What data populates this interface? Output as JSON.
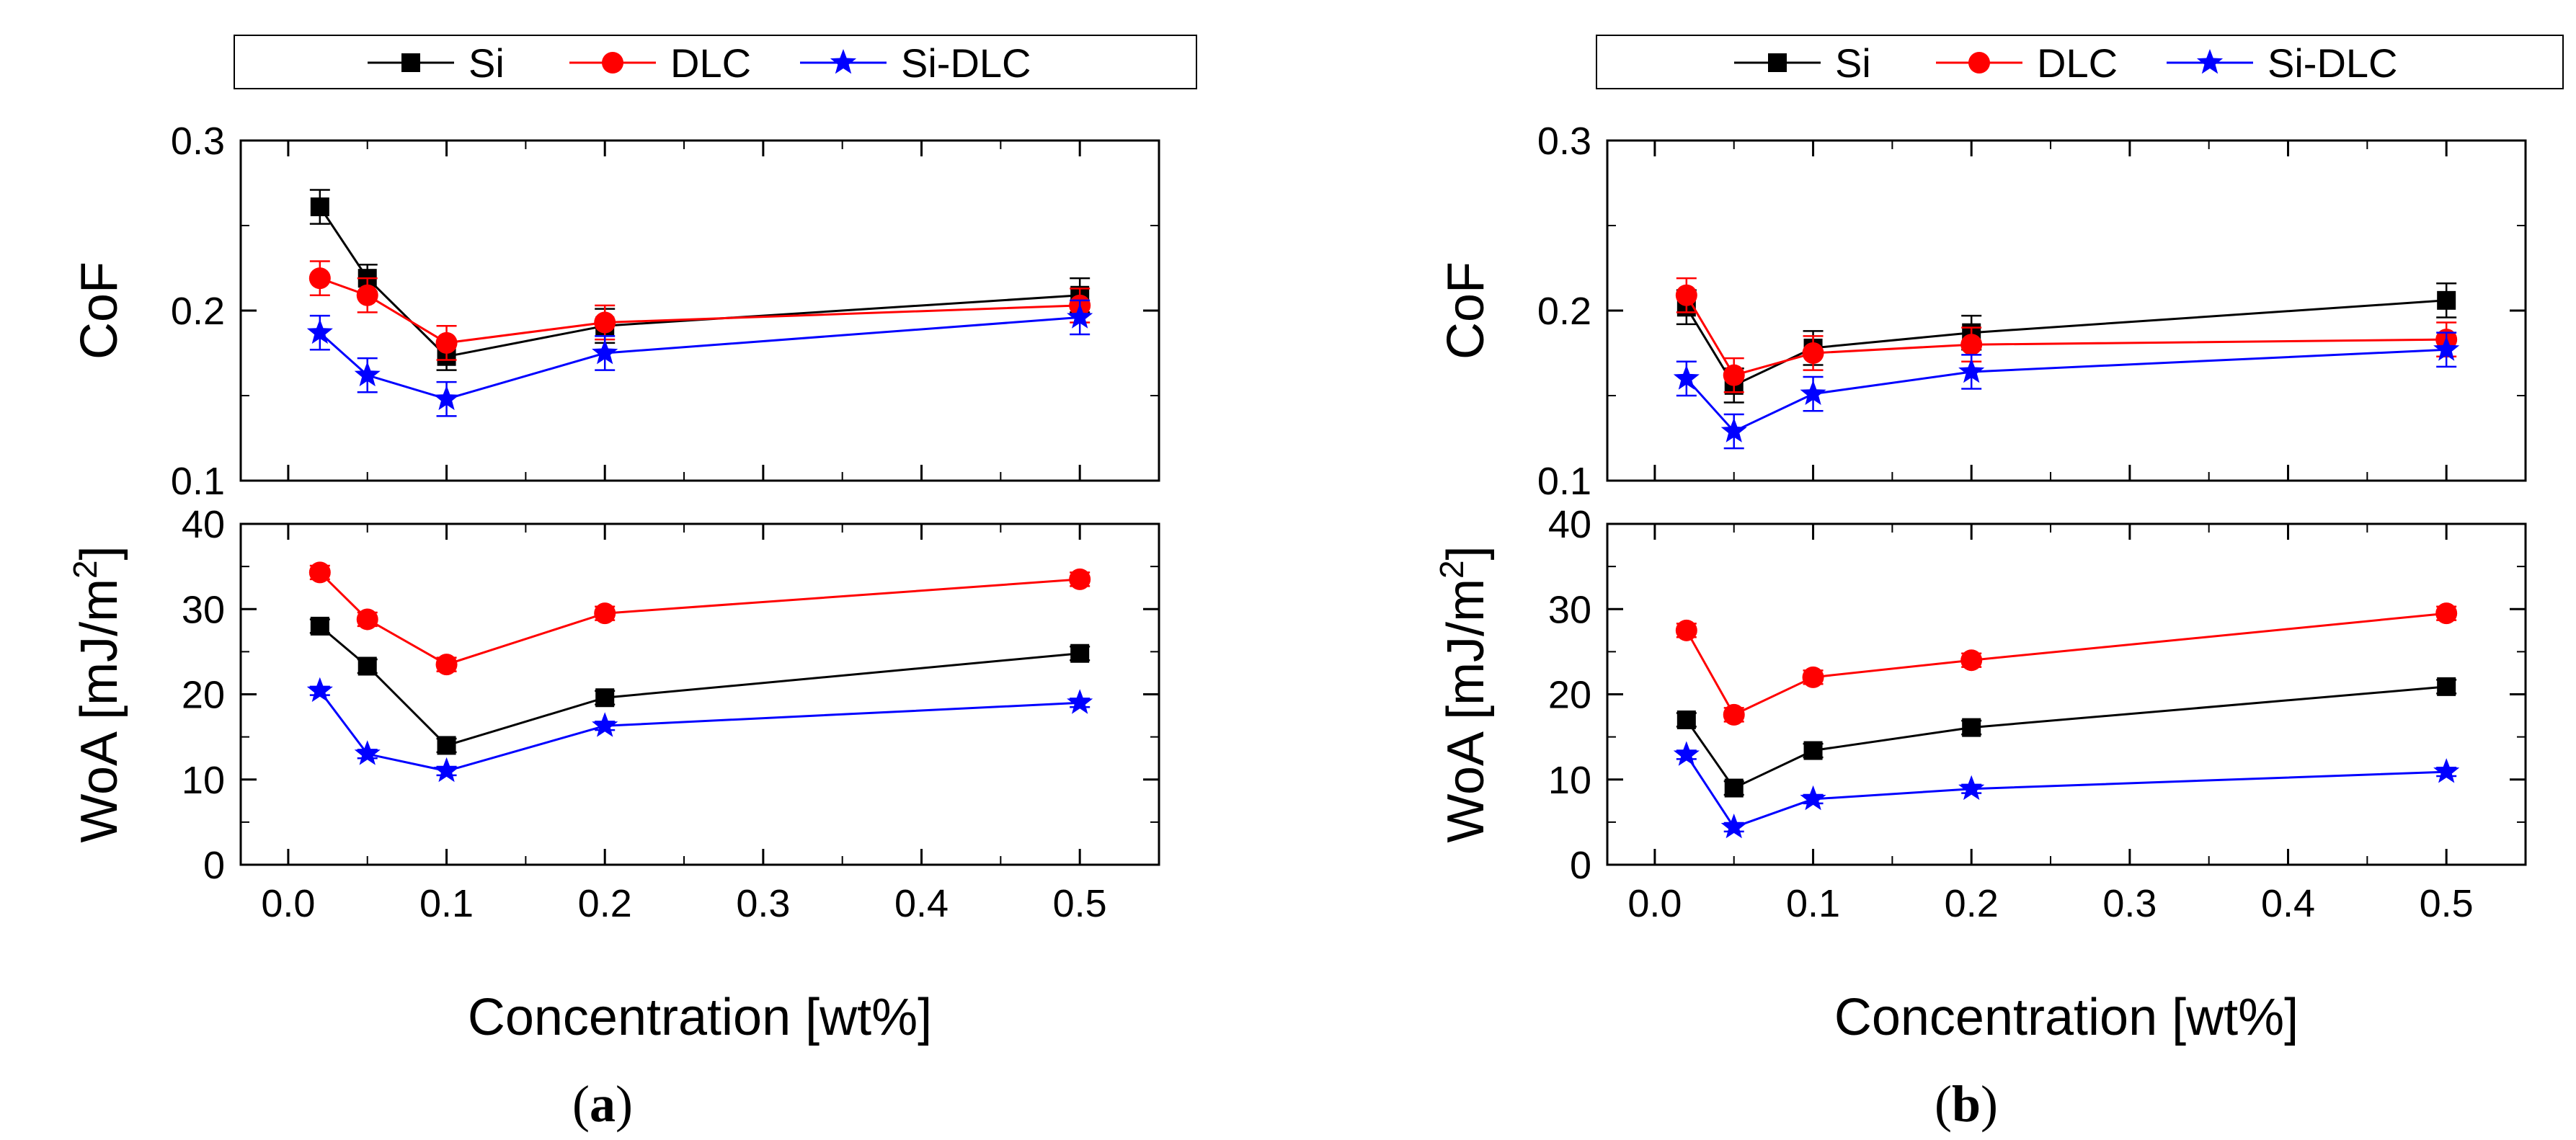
{
  "colors": {
    "Si": "#000000",
    "DLC": "#ff0000",
    "Si-DLC": "#0000ff"
  },
  "legend": [
    "Si",
    "DLC",
    "Si-DLC"
  ],
  "panels": [
    {
      "caption_open": "(",
      "caption_letter": "a",
      "caption_close": ")"
    },
    {
      "caption_open": "(",
      "caption_letter": "b",
      "caption_close": ")"
    }
  ],
  "chart_data": [
    {
      "type": "line",
      "panel": "a",
      "title": "",
      "xlabel": "Concentration [wt%]",
      "x": [
        0.02,
        0.05,
        0.1,
        0.2,
        0.5
      ],
      "xlim": [
        -0.03,
        0.55
      ],
      "xticks": [
        0.0,
        0.1,
        0.2,
        0.3,
        0.4,
        0.5
      ],
      "xtick_labels": [
        "0.0",
        "0.1",
        "0.2",
        "0.3",
        "0.4",
        "0.5"
      ],
      "top": {
        "ylabel": "CoF",
        "ylim": [
          0.1,
          0.3
        ],
        "yticks": [
          0.1,
          0.2,
          0.3
        ],
        "ytick_labels": [
          "0.1",
          "0.2",
          "0.3"
        ],
        "series": [
          {
            "name": "Si",
            "marker": "square",
            "values": [
              0.261,
              0.219,
              0.173,
              0.191,
              0.209
            ],
            "errors": [
              0.01,
              0.008,
              0.008,
              0.01,
              0.01
            ]
          },
          {
            "name": "DLC",
            "marker": "circle",
            "values": [
              0.219,
              0.209,
              0.181,
              0.193,
              0.203
            ],
            "errors": [
              0.01,
              0.01,
              0.01,
              0.01,
              0.01
            ]
          },
          {
            "name": "Si-DLC",
            "marker": "star",
            "values": [
              0.187,
              0.162,
              0.148,
              0.175,
              0.196
            ],
            "errors": [
              0.01,
              0.01,
              0.01,
              0.01,
              0.01
            ]
          }
        ]
      },
      "bottom": {
        "ylabel": "WoA [mJ/m",
        "ylabel_sup": "2",
        "ylabel_end": "]",
        "ylim": [
          0,
          40
        ],
        "yticks": [
          0,
          10,
          20,
          30,
          40
        ],
        "ytick_labels": [
          "0",
          "10",
          "20",
          "30",
          "40"
        ],
        "series": [
          {
            "name": "Si",
            "marker": "square",
            "values": [
              28,
              23.3,
              14,
              19.6,
              24.8
            ],
            "errors": [
              0.8,
              0.8,
              0.8,
              0.8,
              0.8
            ]
          },
          {
            "name": "DLC",
            "marker": "circle",
            "values": [
              34.3,
              28.8,
              23.5,
              29.5,
              33.5
            ],
            "errors": [
              0.8,
              0.8,
              0.8,
              0.8,
              0.8
            ]
          },
          {
            "name": "Si-DLC",
            "marker": "star",
            "values": [
              20.4,
              13,
              11,
              16.3,
              19
            ],
            "errors": [
              0.5,
              0.5,
              0.5,
              0.5,
              0.5
            ]
          }
        ]
      }
    },
    {
      "type": "line",
      "panel": "b",
      "title": "",
      "xlabel": "Concentration [wt%]",
      "x": [
        0.02,
        0.05,
        0.1,
        0.2,
        0.5
      ],
      "xlim": [
        -0.03,
        0.55
      ],
      "xticks": [
        0.0,
        0.1,
        0.2,
        0.3,
        0.4,
        0.5
      ],
      "xtick_labels": [
        "0.0",
        "0.1",
        "0.2",
        "0.3",
        "0.4",
        "0.5"
      ],
      "top": {
        "ylabel": "CoF",
        "ylim": [
          0.1,
          0.3
        ],
        "yticks": [
          0.1,
          0.2,
          0.3
        ],
        "ytick_labels": [
          "0.1",
          "0.2",
          "0.3"
        ],
        "series": [
          {
            "name": "Si",
            "marker": "square",
            "values": [
              0.202,
              0.156,
              0.178,
              0.187,
              0.206
            ],
            "errors": [
              0.01,
              0.01,
              0.01,
              0.01,
              0.01
            ]
          },
          {
            "name": "DLC",
            "marker": "circle",
            "values": [
              0.209,
              0.162,
              0.175,
              0.18,
              0.183
            ],
            "errors": [
              0.01,
              0.01,
              0.01,
              0.01,
              0.01
            ]
          },
          {
            "name": "Si-DLC",
            "marker": "star",
            "values": [
              0.16,
              0.129,
              0.151,
              0.164,
              0.177
            ],
            "errors": [
              0.01,
              0.01,
              0.01,
              0.01,
              0.01
            ]
          }
        ]
      },
      "bottom": {
        "ylabel": "WoA [mJ/m",
        "ylabel_sup": "2",
        "ylabel_end": "]",
        "ylim": [
          0,
          40
        ],
        "yticks": [
          0,
          10,
          20,
          30,
          40
        ],
        "ytick_labels": [
          "0",
          "10",
          "20",
          "30",
          "40"
        ],
        "series": [
          {
            "name": "Si",
            "marker": "square",
            "values": [
              17,
              9,
              13.4,
              16.1,
              20.9
            ],
            "errors": [
              0.8,
              0.8,
              0.8,
              0.8,
              0.8
            ]
          },
          {
            "name": "DLC",
            "marker": "circle",
            "values": [
              27.5,
              17.6,
              22,
              24,
              29.5
            ],
            "errors": [
              0.8,
              0.8,
              0.8,
              0.8,
              0.8
            ]
          },
          {
            "name": "Si-DLC",
            "marker": "star",
            "values": [
              12.9,
              4.4,
              7.7,
              8.9,
              10.9
            ],
            "errors": [
              0.5,
              0.5,
              0.5,
              0.5,
              0.5
            ]
          }
        ]
      }
    }
  ]
}
